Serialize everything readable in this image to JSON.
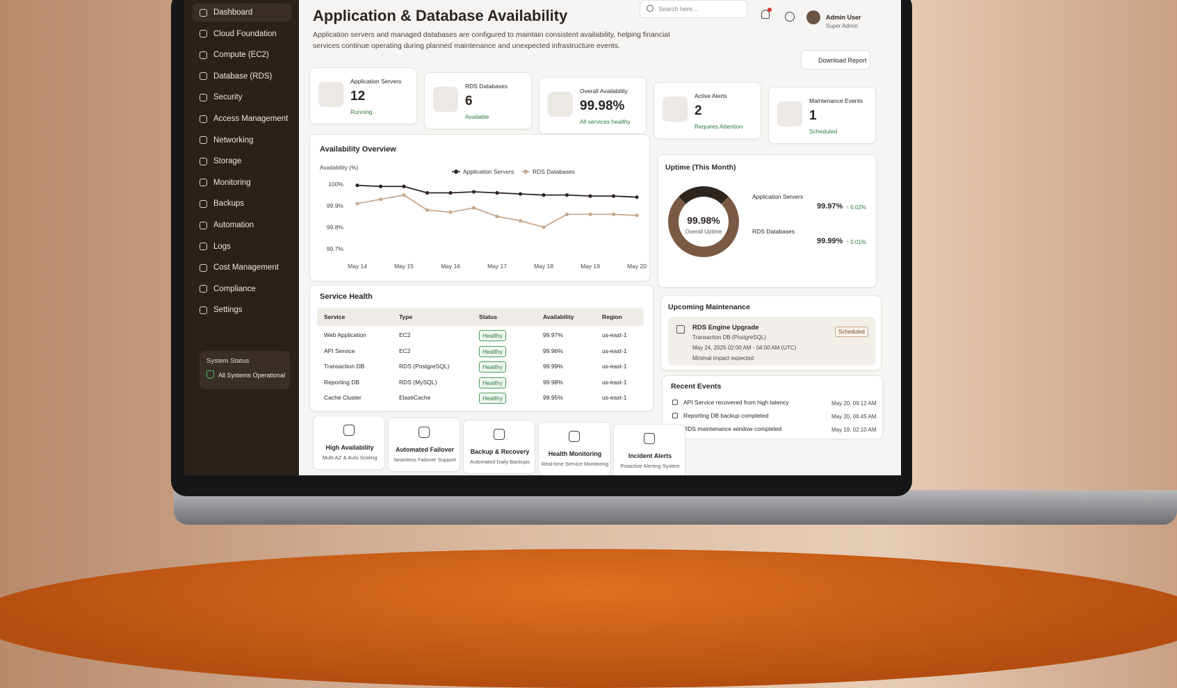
{
  "sidebar": {
    "items": [
      "Dashboard",
      "Cloud Foundation",
      "Compute (EC2)",
      "Database (RDS)",
      "Security",
      "Access Management",
      "Networking",
      "Storage",
      "Monitoring",
      "Backups",
      "Automation",
      "Logs",
      "Cost Management",
      "Compliance",
      "Settings"
    ],
    "status_title": "System Status",
    "status_text": "All Systems Operational"
  },
  "header": {
    "title": "Application & Database Availability",
    "description": "Application servers and managed databases are configured to maintain consistent availability, helping financial services continue operating during planned maintenance and unexpected infrastructure events.",
    "search_placeholder": "Search here...",
    "user_name": "Admin User",
    "user_role": "Super Admin",
    "download_button": "Download Report"
  },
  "stats": [
    {
      "label": "Application Servers",
      "value": "12",
      "status": "Running"
    },
    {
      "label": "RDS Databases",
      "value": "6",
      "status": "Available"
    },
    {
      "label": "Overall Availability",
      "value": "99.98%",
      "status": "All services healthy"
    },
    {
      "label": "Active Alerts",
      "value": "2",
      "status": "Requires Attention"
    },
    {
      "label": "Maintenance Events",
      "value": "1",
      "status": "Scheduled"
    }
  ],
  "chart_data": {
    "type": "line",
    "title": "Availability Overview",
    "y_label": "Availability (%)",
    "categories": [
      "May 14",
      null,
      "May 15",
      null,
      "May 16",
      null,
      "May 17",
      null,
      "May 18",
      null,
      "May 19",
      null,
      "May 20"
    ],
    "series": [
      {
        "name": "Application Servers",
        "color": "#2e2420",
        "values": [
          99.995,
          99.99,
          99.99,
          99.96,
          99.96,
          99.965,
          99.96,
          99.955,
          99.95,
          99.95,
          99.945,
          99.945,
          99.94
        ]
      },
      {
        "name": "RDS Databases",
        "color": "#c9a78c",
        "values": [
          99.91,
          99.93,
          99.95,
          99.88,
          99.87,
          99.89,
          99.85,
          99.83,
          99.8,
          99.86,
          99.86,
          99.86,
          99.855
        ]
      }
    ],
    "ylim": [
      99.68,
      100.02
    ],
    "yticks": [
      {
        "value": 100,
        "label": "100%"
      },
      {
        "value": 99.9,
        "label": "99.9%"
      },
      {
        "value": 99.8,
        "label": "99.8%"
      },
      {
        "value": 99.7,
        "label": "99.7%"
      }
    ],
    "grid": false
  },
  "uptime": {
    "title": "Uptime (This Month)",
    "overall": "99.98%",
    "overall_label": "Overall Uptime",
    "items": [
      {
        "name": "Application Servers",
        "value": "99.97%",
        "change": "↑ 0.02%"
      },
      {
        "name": "RDS Databases",
        "value": "99.99%",
        "change": "↑ 0.01%"
      }
    ]
  },
  "service_health": {
    "title": "Service Health",
    "columns": [
      "Service",
      "Type",
      "Status",
      "Availability",
      "Region"
    ],
    "rows": [
      [
        "Web Application",
        "EC2",
        "Healthy",
        "99.97%",
        "us-east-1"
      ],
      [
        "API Service",
        "EC2",
        "Healthy",
        "99.96%",
        "us-east-1"
      ],
      [
        "Transaction DB",
        "RDS (PostgreSQL)",
        "Healthy",
        "99.99%",
        "us-east-1"
      ],
      [
        "Reporting DB",
        "RDS (MySQL)",
        "Healthy",
        "99.98%",
        "us-east-1"
      ],
      [
        "Cache Cluster",
        "ElastiCache",
        "Healthy",
        "99.95%",
        "us-east-1"
      ]
    ]
  },
  "maintenance": {
    "title": "Upcoming Maintenance",
    "name": "RDS Engine Upgrade",
    "target": "Transaction DB (PostgreSQL)",
    "time": "May 24, 2025 02:00 AM - 04:00 AM (UTC)",
    "impact": "Minimal impact expected",
    "status": "Scheduled"
  },
  "events": {
    "title": "Recent Events",
    "items": [
      {
        "text": "API Service recovered from high latency",
        "time": "May 20, 09:12 AM"
      },
      {
        "text": "Reporting DB backup completed",
        "time": "May 20, 06:45 AM"
      },
      {
        "text": "RDS maintenance window completed",
        "time": "May 19, 02:10 AM"
      }
    ]
  },
  "features": [
    {
      "title": "High Availability",
      "subtitle": "Multi-AZ & Auto Scaling"
    },
    {
      "title": "Automated Failover",
      "subtitle": "Seamless Failover Support"
    },
    {
      "title": "Backup & Recovery",
      "subtitle": "Automated Daily Backups"
    },
    {
      "title": "Health Monitoring",
      "subtitle": "Real-time Service Monitoring"
    },
    {
      "title": "Incident Alerts",
      "subtitle": "Proactive Alerting System"
    }
  ]
}
